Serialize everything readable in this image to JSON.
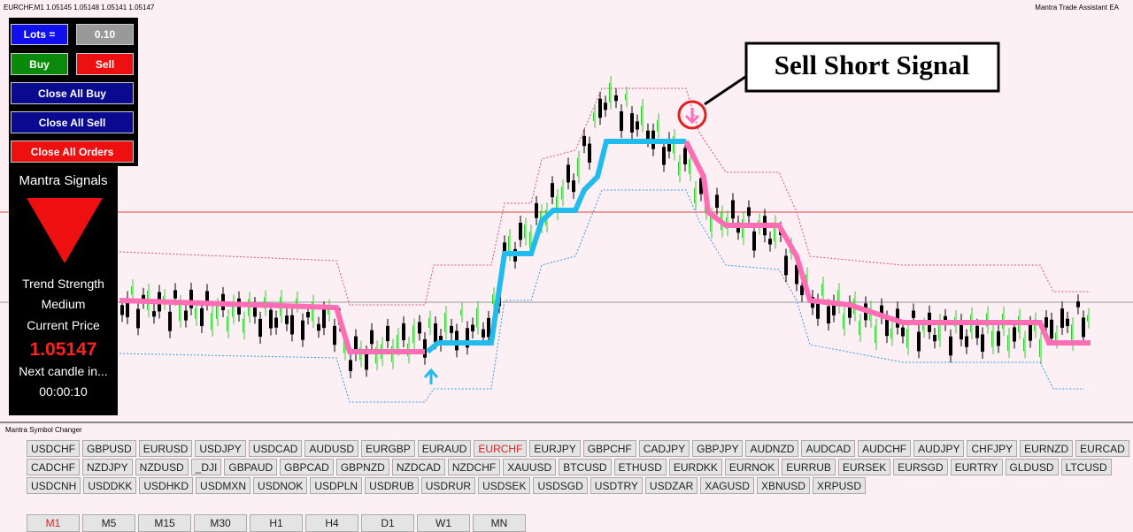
{
  "header": {
    "symbol_info": "EURCHF,M1  1.05145 1.05148 1.05141 1.05147",
    "ea_name": "Mantra Trade Assistant EA"
  },
  "trade_panel": {
    "lots_label": "Lots =",
    "lots_value": "0.10",
    "buy": "Buy",
    "sell": "Sell",
    "close_all_buy": "Close All Buy",
    "close_all_sell": "Close All Sell",
    "close_all_orders": "Close All Orders"
  },
  "signals": {
    "title": "Mantra Signals",
    "trend_label": "Trend Strength",
    "trend_value": "Medium",
    "price_label": "Current Price",
    "price": "1.05147",
    "next_candle_label": "Next candle in...",
    "timer": "00:00:10"
  },
  "annotation": "Sell Short Signal",
  "symbol_changer": {
    "title": "Mantra Symbol Changer",
    "active": "EURCHF",
    "rows": [
      [
        "USDCHF",
        "GBPUSD",
        "EURUSD",
        "USDJPY",
        "USDCAD",
        "AUDUSD",
        "EURGBP",
        "EURAUD",
        "EURCHF",
        "EURJPY",
        "GBPCHF",
        "CADJPY",
        "GBPJPY",
        "AUDNZD",
        "AUDCAD",
        "AUDCHF",
        "AUDJPY",
        "CHFJPY",
        "EURNZD",
        "EURCAD"
      ],
      [
        "CADCHF",
        "NZDJPY",
        "NZDUSD",
        "_DJI",
        "GBPAUD",
        "GBPCAD",
        "GBPNZD",
        "NZDCAD",
        "NZDCHF",
        "XAUUSD",
        "BTCUSD",
        "ETHUSD",
        "EURDKK",
        "EURNOK",
        "EURRUB",
        "EURSEK",
        "EURSGD",
        "EURTRY",
        "GLDUSD",
        "LTCUSD"
      ],
      [
        "USDCNH",
        "USDDKK",
        "USDHKD",
        "USDMXN",
        "USDNOK",
        "USDPLN",
        "USDRUB",
        "USDRUR",
        "USDSEK",
        "USDSGD",
        "USDTRY",
        "USDZAR",
        "XAGUSD",
        "XBNUSD",
        "XRPUSD"
      ]
    ]
  },
  "timeframes": {
    "active": "M1",
    "items": [
      "M1",
      "M5",
      "M15",
      "M30",
      "H1",
      "H4",
      "D1",
      "W1",
      "MN"
    ]
  }
}
